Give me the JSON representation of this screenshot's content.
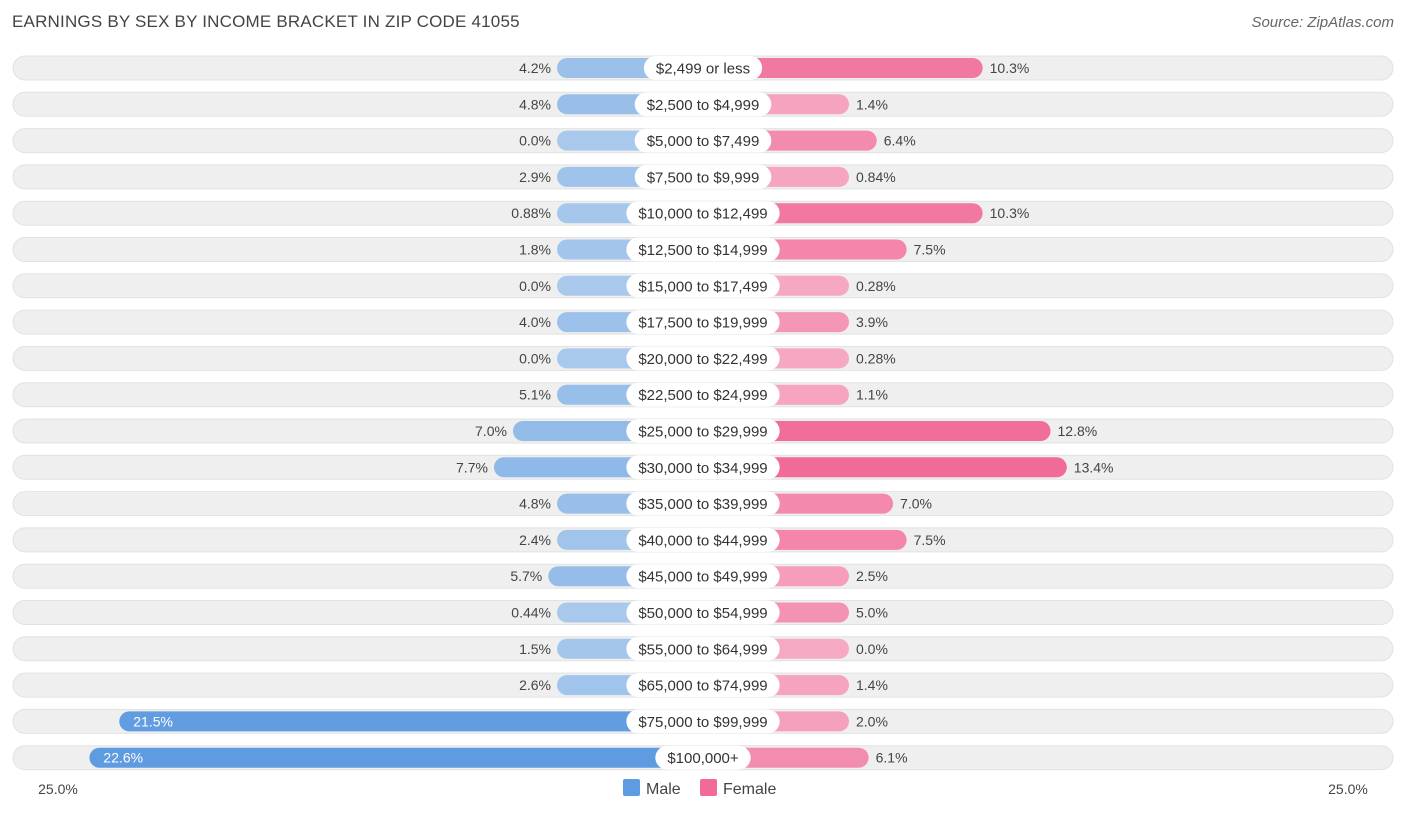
{
  "chart_data": {
    "type": "bar",
    "orientation": "horizontal-diverging",
    "title": "EARNINGS BY SEX BY INCOME BRACKET IN ZIP CODE 41055",
    "source": "Source: ZipAtlas.com",
    "categories": [
      "$2,499 or less",
      "$2,500 to $4,999",
      "$5,000 to $7,499",
      "$7,500 to $9,999",
      "$10,000 to $12,499",
      "$12,500 to $14,999",
      "$15,000 to $17,499",
      "$17,500 to $19,999",
      "$20,000 to $22,499",
      "$22,500 to $24,999",
      "$25,000 to $29,999",
      "$30,000 to $34,999",
      "$35,000 to $39,999",
      "$40,000 to $44,999",
      "$45,000 to $49,999",
      "$50,000 to $54,999",
      "$55,000 to $64,999",
      "$65,000 to $74,999",
      "$75,000 to $99,999",
      "$100,000+"
    ],
    "series": [
      {
        "name": "Male",
        "values": [
          4.2,
          4.8,
          0.0,
          2.9,
          0.88,
          1.8,
          0.0,
          4.0,
          0.0,
          5.1,
          7.0,
          7.7,
          4.8,
          2.4,
          5.7,
          0.44,
          1.5,
          2.6,
          21.5,
          22.6
        ],
        "labels": [
          "4.2%",
          "4.8%",
          "0.0%",
          "2.9%",
          "0.88%",
          "1.8%",
          "0.0%",
          "4.0%",
          "0.0%",
          "5.1%",
          "7.0%",
          "7.7%",
          "4.8%",
          "2.4%",
          "5.7%",
          "0.44%",
          "1.5%",
          "2.6%",
          "21.5%",
          "22.6%"
        ]
      },
      {
        "name": "Female",
        "values": [
          10.3,
          1.4,
          6.4,
          0.84,
          10.3,
          7.5,
          0.28,
          3.9,
          0.28,
          1.1,
          12.8,
          13.4,
          7.0,
          7.5,
          2.5,
          5.0,
          0.0,
          1.4,
          2.0,
          6.1
        ],
        "labels": [
          "10.3%",
          "1.4%",
          "6.4%",
          "0.84%",
          "10.3%",
          "7.5%",
          "0.28%",
          "3.9%",
          "0.28%",
          "1.1%",
          "12.8%",
          "13.4%",
          "7.0%",
          "7.5%",
          "2.5%",
          "5.0%",
          "0.0%",
          "1.4%",
          "2.0%",
          "6.1%"
        ]
      }
    ],
    "axis": {
      "max": 25.0,
      "left_label": "25.0%",
      "right_label": "25.0%"
    },
    "legend": [
      "Male",
      "Female"
    ],
    "colors": {
      "male_dark": "#5e9be0",
      "male_light": "#a9c9ec",
      "female_dark": "#f06b97",
      "female_light": "#f6a9c3",
      "track": "#efefef"
    }
  }
}
